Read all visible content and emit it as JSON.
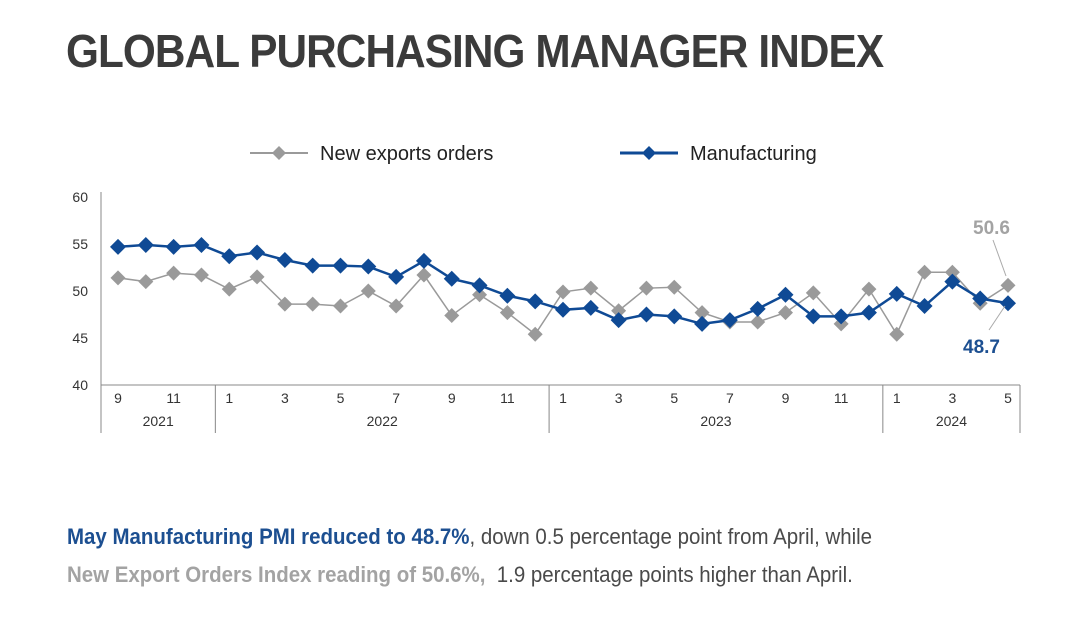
{
  "title": "GLOBAL PURCHASING MANAGER INDEX",
  "chart_data": {
    "type": "line",
    "title": "GLOBAL PURCHASING MANAGER INDEX",
    "xlabel": "",
    "ylabel": "",
    "ylim": [
      40,
      60
    ],
    "yticks": [
      "40",
      "45",
      "50",
      "55",
      "60"
    ],
    "month_ticks": [
      "9",
      "11",
      "1",
      "3",
      "5",
      "7",
      "9",
      "11",
      "1",
      "3",
      "5",
      "7",
      "9",
      "11",
      "1",
      "3",
      "5"
    ],
    "years": [
      "2021",
      "2022",
      "2023",
      "2024"
    ],
    "x": [
      "2021-09",
      "2021-10",
      "2021-11",
      "2021-12",
      "2022-01",
      "2022-02",
      "2022-03",
      "2022-04",
      "2022-05",
      "2022-06",
      "2022-07",
      "2022-08",
      "2022-09",
      "2022-10",
      "2022-11",
      "2022-12",
      "2023-01",
      "2023-02",
      "2023-03",
      "2023-04",
      "2023-05",
      "2023-06",
      "2023-07",
      "2023-08",
      "2023-09",
      "2023-10",
      "2023-11",
      "2023-12",
      "2024-01",
      "2024-02",
      "2024-03",
      "2024-04",
      "2024-05"
    ],
    "legend_position": "top",
    "series": [
      {
        "name": "New exports orders",
        "color": "#9a9a9a",
        "values": [
          51.4,
          51.0,
          51.9,
          51.7,
          50.2,
          51.5,
          48.6,
          48.6,
          48.4,
          50.0,
          48.4,
          51.7,
          47.4,
          49.6,
          47.7,
          45.4,
          49.9,
          50.3,
          47.9,
          50.3,
          50.4,
          47.7,
          46.7,
          46.7,
          47.7,
          49.8,
          46.5,
          50.2,
          45.4,
          52.0,
          52.0,
          48.7,
          50.6
        ]
      },
      {
        "name": "Manufacturing",
        "color": "#0f4a95",
        "values": [
          54.7,
          54.9,
          54.7,
          54.9,
          53.7,
          54.1,
          53.3,
          52.7,
          52.7,
          52.6,
          51.5,
          53.2,
          51.3,
          50.6,
          49.5,
          48.9,
          48.0,
          48.2,
          46.9,
          47.5,
          47.3,
          46.5,
          46.9,
          48.1,
          49.6,
          47.3,
          47.3,
          47.7,
          49.7,
          48.4,
          51.0,
          49.2,
          48.7
        ]
      }
    ],
    "annotations": [
      "50.6",
      "48.7"
    ]
  },
  "caption": {
    "line1_bold": "May Manufacturing PMI reduced to 48.7%",
    "line1_rest": ", down 0.5 percentage point from April, while",
    "line2_bold": "New Export Orders Index reading of 50.6%,",
    "line2_rest": "  1.9 percentage points higher than April."
  }
}
